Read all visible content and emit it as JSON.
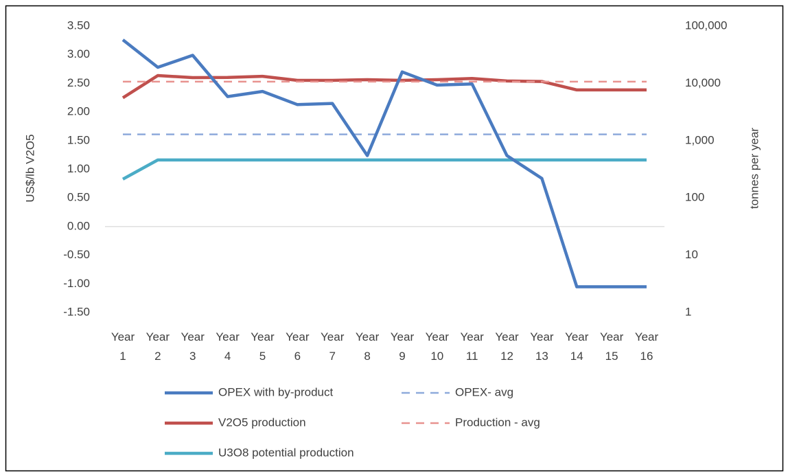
{
  "chart_data": {
    "type": "line",
    "categories": [
      "Year 1",
      "Year 2",
      "Year 3",
      "Year 4",
      "Year 5",
      "Year 6",
      "Year 7",
      "Year 8",
      "Year 9",
      "Year 10",
      "Year 11",
      "Year 12",
      "Year 13",
      "Year 14",
      "Year 15",
      "Year 16"
    ],
    "y_label": "US$/lb V2O5",
    "y2_label": "tonnes  per year",
    "ylim": [
      -1.5,
      3.5
    ],
    "yticks": [
      {
        "value": -1.5,
        "label": "-1.50"
      },
      {
        "value": -1,
        "label": "-1.00"
      },
      {
        "value": -0.5,
        "label": "-0.50"
      },
      {
        "value": 0,
        "label": "0.00"
      },
      {
        "value": 0.5,
        "label": "0.50"
      },
      {
        "value": 1,
        "label": "1.00"
      },
      {
        "value": 1.5,
        "label": "1.50"
      },
      {
        "value": 2,
        "label": "2.00"
      },
      {
        "value": 2.5,
        "label": "2.50"
      },
      {
        "value": 3,
        "label": "3.00"
      },
      {
        "value": 3.5,
        "label": "3.50"
      }
    ],
    "y2lim": [
      1,
      100000
    ],
    "y2_log": true,
    "y2ticks": [
      1,
      10,
      100,
      {
        "value": 1000,
        "label": "1,000"
      },
      {
        "value": 10000,
        "label": "10,000"
      },
      {
        "value": 100000,
        "label": "100,000"
      }
    ],
    "grid": false,
    "zero_line": true,
    "legend": "bottom",
    "series": [
      {
        "name": "OPEX with by-product",
        "color": "#4a7bc0",
        "dashed": false,
        "axis": "y",
        "values": [
          3.26,
          2.78,
          2.99,
          2.27,
          2.36,
          2.13,
          2.15,
          1.24,
          2.7,
          2.47,
          2.49,
          1.24,
          0.84,
          -1.05,
          -1.05,
          -1.05
        ]
      },
      {
        "name": "OPEX- avg",
        "color": "#8eaadb",
        "dashed": true,
        "axis": "y",
        "values": [
          1.61,
          1.61,
          1.61,
          1.61,
          1.61,
          1.61,
          1.61,
          1.61,
          1.61,
          1.61,
          1.61,
          1.61,
          1.61,
          1.61,
          1.61,
          1.61
        ]
      },
      {
        "name": "V2O5 production",
        "color": "#c0504d",
        "dashed": false,
        "axis": "y2",
        "values": [
          5600,
          13700,
          12600,
          12700,
          13300,
          11300,
          11300,
          11600,
          11300,
          11600,
          12200,
          11000,
          10800,
          7700,
          7700,
          7700
        ]
      },
      {
        "name": "Production - avg",
        "color": "#e8928f",
        "dashed": true,
        "axis": "y2",
        "values": [
          10700,
          10700,
          10700,
          10700,
          10700,
          10700,
          10700,
          10700,
          10700,
          10700,
          10700,
          10700,
          10700,
          10700,
          10700,
          10700
        ]
      },
      {
        "name": "U3O8 potential production",
        "color": "#4bacc6",
        "dashed": false,
        "axis": "y2",
        "values": [
          213,
          460,
          460,
          460,
          460,
          460,
          460,
          460,
          460,
          460,
          460,
          460,
          460,
          460,
          460,
          460
        ]
      }
    ]
  }
}
